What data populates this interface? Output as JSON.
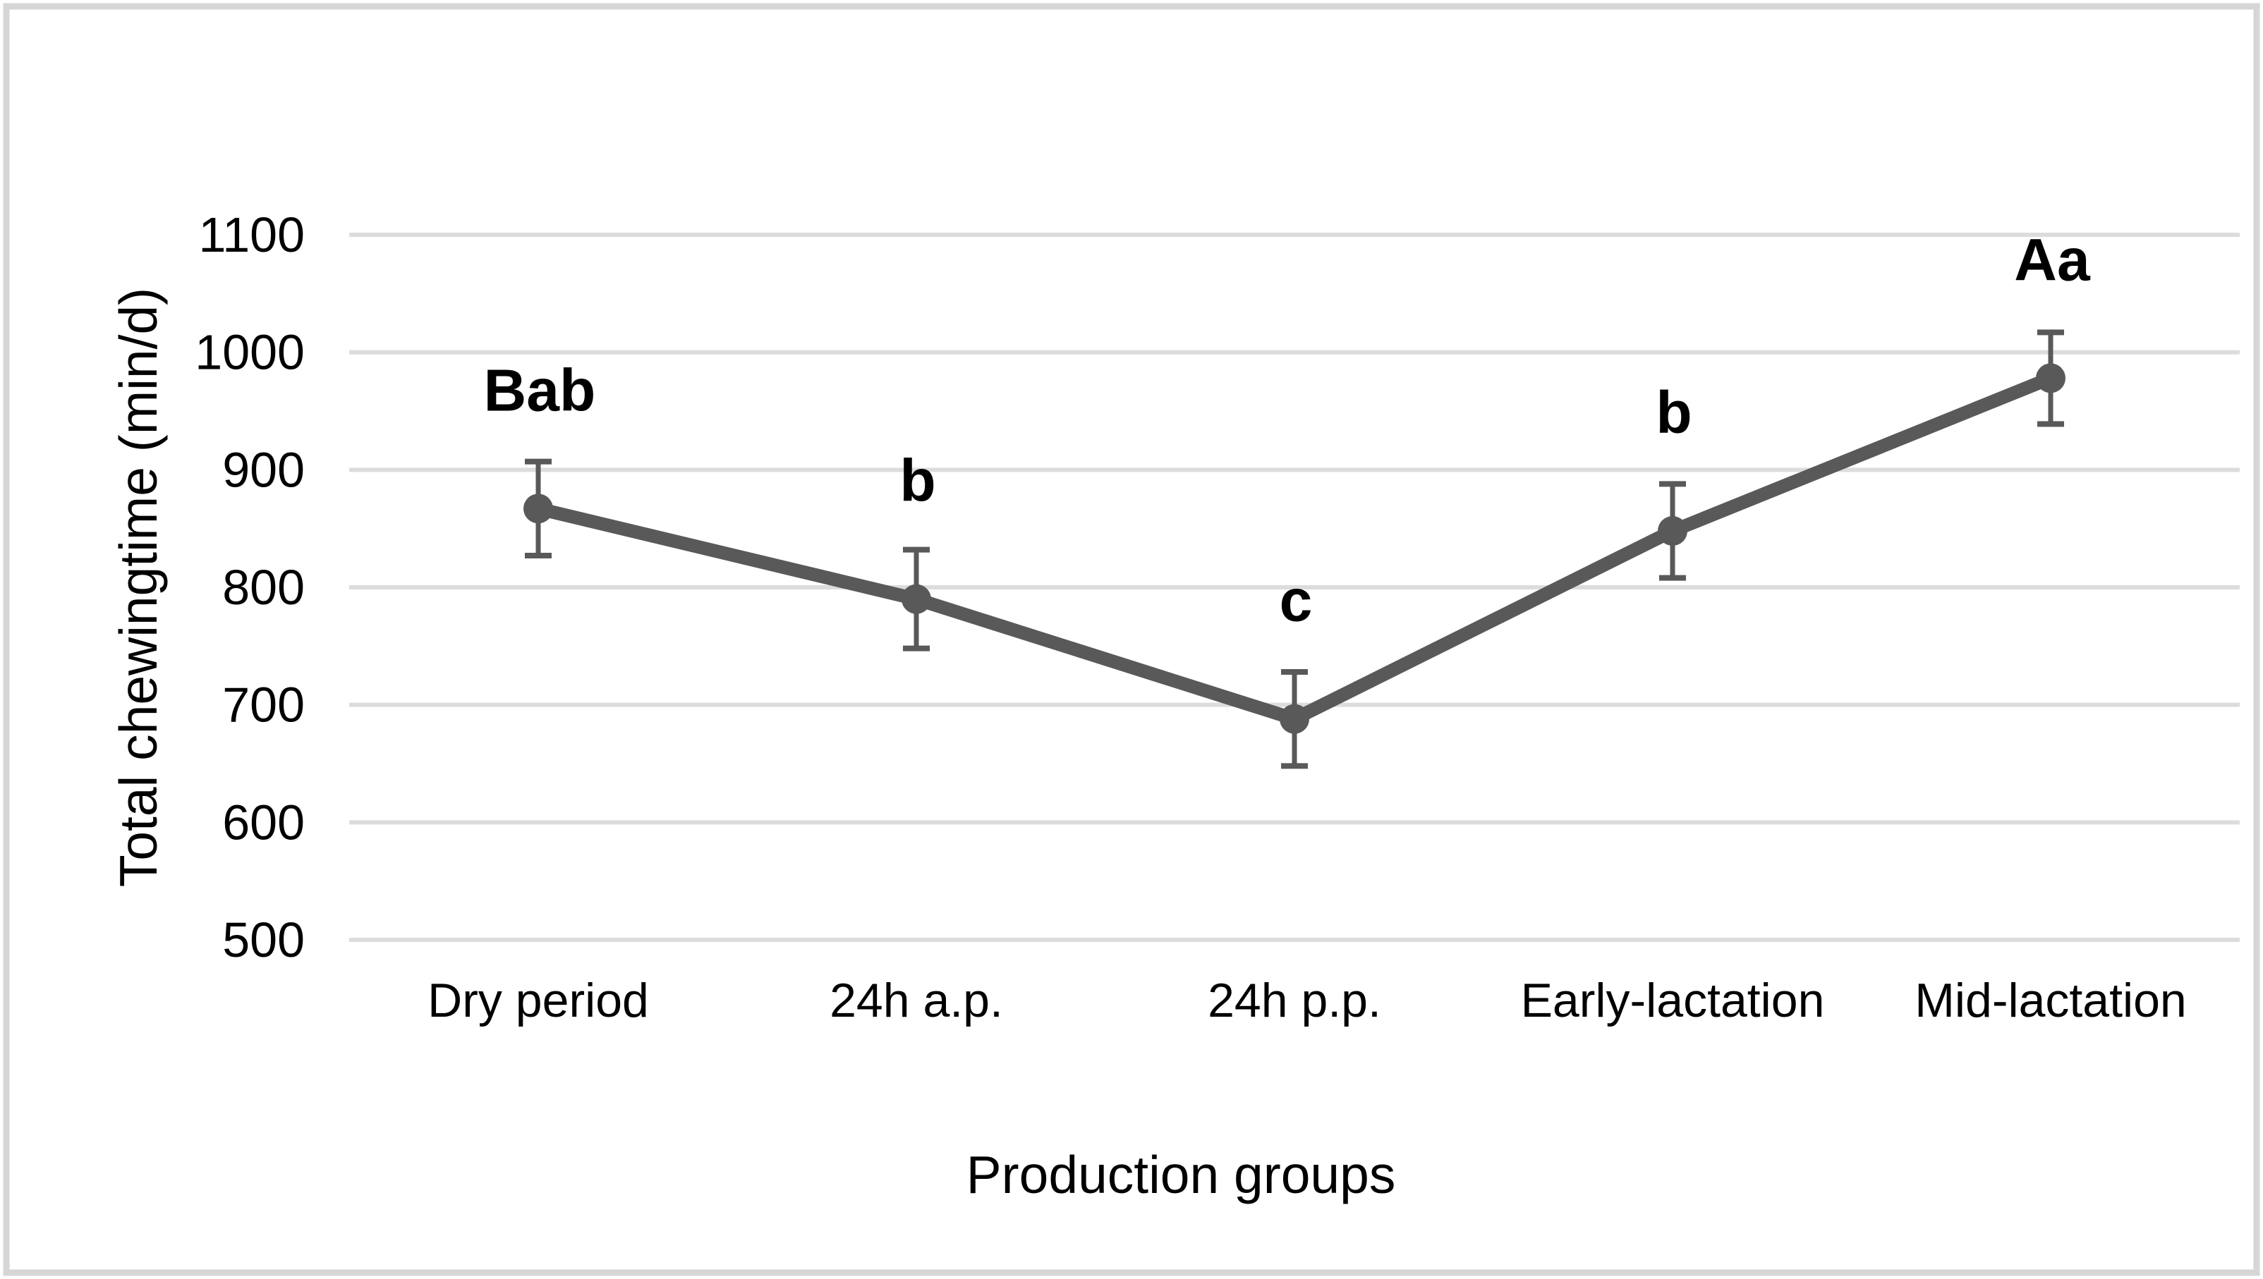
{
  "figure": {
    "background_color": "#ffffff",
    "border_color": "#d6d6d6"
  },
  "chart_data": {
    "type": "line",
    "title": "",
    "xlabel": "Production groups",
    "ylabel": "Total chewingtime (min/d)",
    "categories": [
      "Dry period",
      "24h a.p.",
      "24h p.p.",
      "Early-lactation",
      "Mid-lactation"
    ],
    "series": [
      {
        "name": "Total chewing time",
        "values": [
          867,
          790,
          688,
          848,
          978
        ],
        "errors": [
          40,
          42,
          40,
          40,
          39
        ],
        "point_labels": [
          "Bab",
          "b",
          "c",
          "b",
          "Aa"
        ]
      }
    ],
    "ylim": [
      500,
      1100
    ],
    "ytick_step": 100,
    "ytick_labels": [
      "500",
      "600",
      "700",
      "800",
      "900",
      "1000",
      "1100"
    ],
    "grid": "horizontal-only",
    "legend": "none",
    "colors": {
      "series": "#595959",
      "gridline": "#dcdcdc",
      "text": "#000000"
    }
  }
}
